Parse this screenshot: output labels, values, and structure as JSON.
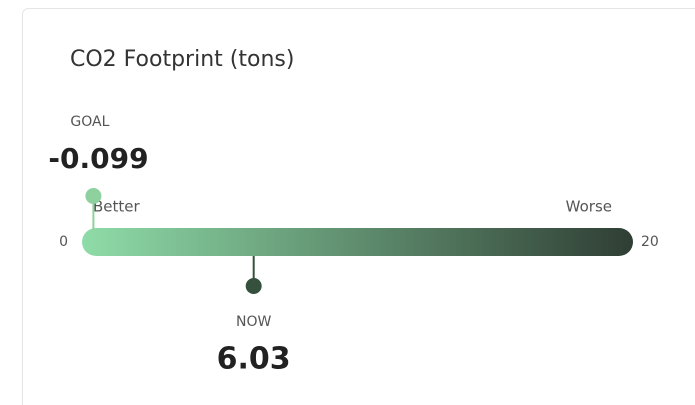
{
  "chart_data": {
    "type": "gauge",
    "title": "CO2 Footprint (tons)",
    "xlim": [
      0,
      20
    ],
    "xticks": [
      0,
      20
    ],
    "low_label": "Better",
    "high_label": "Worse",
    "gradient": [
      "#8fdca8",
      "#2f3e34"
    ],
    "goal": {
      "label": "GOAL",
      "value": -0.099,
      "color": "#8fd19e"
    },
    "now": {
      "label": "NOW",
      "value": 6.03,
      "color": "#35503d"
    }
  }
}
